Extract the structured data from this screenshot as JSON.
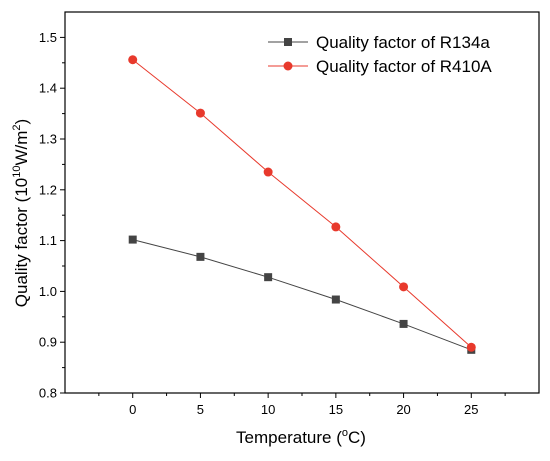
{
  "chart_data": {
    "type": "line",
    "x": [
      0,
      5,
      10,
      15,
      20,
      25
    ],
    "xlim": [
      -5,
      30
    ],
    "ylim": [
      0.8,
      1.55
    ],
    "xticks": [
      "0",
      "5",
      "10",
      "15",
      "20",
      "25"
    ],
    "yticks": [
      "0.8",
      "0.9",
      "1.0",
      "1.1",
      "1.2",
      "1.3",
      "1.4",
      "1.5"
    ],
    "xlabel": {
      "main": "Temperature (",
      "degree": "o",
      "unit": "C)"
    },
    "ylabel": {
      "main": "Quality factor (10",
      "exp": "10",
      "unit": "W/m",
      "unit_exp": "2",
      "close": ")"
    },
    "grid": false,
    "legend_position": "top-right",
    "series": [
      {
        "name": "Quality factor of R134a",
        "marker": "square",
        "color": "#444444",
        "values": [
          1.102,
          1.068,
          1.028,
          0.984,
          0.936,
          0.885
        ]
      },
      {
        "name": "Quality factor of R410A",
        "marker": "circle",
        "color": "#e8392c",
        "values": [
          1.456,
          1.351,
          1.235,
          1.127,
          1.009,
          0.89
        ]
      }
    ]
  }
}
